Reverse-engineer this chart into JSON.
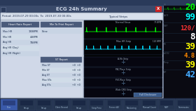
{
  "title": "ECG 24h Summary",
  "outer_bg": "#2a3a5a",
  "dialog_bg": "#e8e8e8",
  "dialog_header_bg": "#3a4a6a",
  "period_bar_bg": "#d0d8e8",
  "left_panel_bg": "#c8d0e0",
  "left_header_bg": "#5a6a8a",
  "table_row_bg": "#d8e0f0",
  "ecg_panel_bg": "#000000",
  "ecg_strip_bg": "#111111",
  "ecg_color": "#00ff00",
  "ecg2_color": "#00ddff",
  "title_color": "#d0d8e8",
  "period_text_color": "#203050",
  "table_text_color": "#203050",
  "header_text_color": "#ffffff",
  "right_panel_bg": "#0a0a12",
  "right_vitals": [
    "20",
    "99",
    "120/",
    "8",
    "39",
    "4.8",
    "39",
    "42"
  ],
  "right_vital_colors": [
    "#00ff00",
    "#00ffff",
    "#ff3333",
    "#ffffff",
    "#ffff00",
    "#ff8800",
    "#ffff00",
    "#44aaff"
  ],
  "right_vital_labels": [
    "HR",
    "SpO2",
    "NIBP",
    "",
    "RR",
    "etCO2",
    "Temp",
    "IBP"
  ],
  "toolbar_bg": "#1a2a4a",
  "toolbar_btn_bg": "#2a3a5a",
  "toolbar_btn_active": "#3a5aaa",
  "strip_labels": [
    "A-Fib Strip",
    "PAC/Pace Strip",
    "PVC/Pace Strip",
    "Wide QRS Strip"
  ],
  "ecg_strip1_label": "Normal Sinus",
  "ecg_strip2_label": "Max HR Strip",
  "full_disclosure_btn": "Full Disclosure"
}
